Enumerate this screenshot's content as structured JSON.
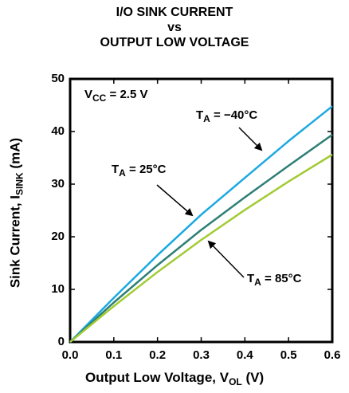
{
  "chart_data": {
    "type": "line",
    "title": [
      "I/O SINK CURRENT",
      "vs",
      "OUTPUT LOW VOLTAGE"
    ],
    "xlabel": {
      "main": "Output Low Voltage, V",
      "sub": "OL",
      "tail": " (V)"
    },
    "ylabel": {
      "main": "Sink Current, I",
      "sub": "SINK",
      "tail": " (mA)"
    },
    "xlim": [
      0,
      0.6
    ],
    "ylim": [
      0,
      50
    ],
    "x_ticks": [
      "0.0",
      "0.1",
      "0.2",
      "0.3",
      "0.4",
      "0.5",
      "0.6"
    ],
    "y_ticks": [
      "0",
      "10",
      "20",
      "30",
      "40",
      "50"
    ],
    "grid": false,
    "condition": {
      "main": "V",
      "sub": "CC",
      "tail": " = 2.5 V"
    },
    "series": [
      {
        "name": {
          "main": "T",
          "sub": "A",
          "tail": " = −40°C"
        },
        "color": "#1ba9e1",
        "x": [
          0,
          0.1,
          0.2,
          0.3,
          0.4,
          0.5,
          0.6
        ],
        "y": [
          0,
          8.4,
          16.5,
          24.2,
          31.2,
          38.2,
          44.8
        ]
      },
      {
        "name": {
          "main": "T",
          "sub": "A",
          "tail": " = 25°C"
        },
        "color": "#2e7f76",
        "x": [
          0,
          0.1,
          0.2,
          0.3,
          0.4,
          0.5,
          0.6
        ],
        "y": [
          0,
          7.5,
          14.6,
          21.3,
          27.5,
          33.5,
          39.4
        ]
      },
      {
        "name": {
          "main": "T",
          "sub": "A",
          "tail": " = 85°C"
        },
        "color": "#a2cb34",
        "x": [
          0,
          0.1,
          0.2,
          0.3,
          0.4,
          0.5,
          0.6
        ],
        "y": [
          0,
          6.8,
          13.3,
          19.4,
          25.1,
          30.5,
          35.6
        ]
      }
    ]
  }
}
